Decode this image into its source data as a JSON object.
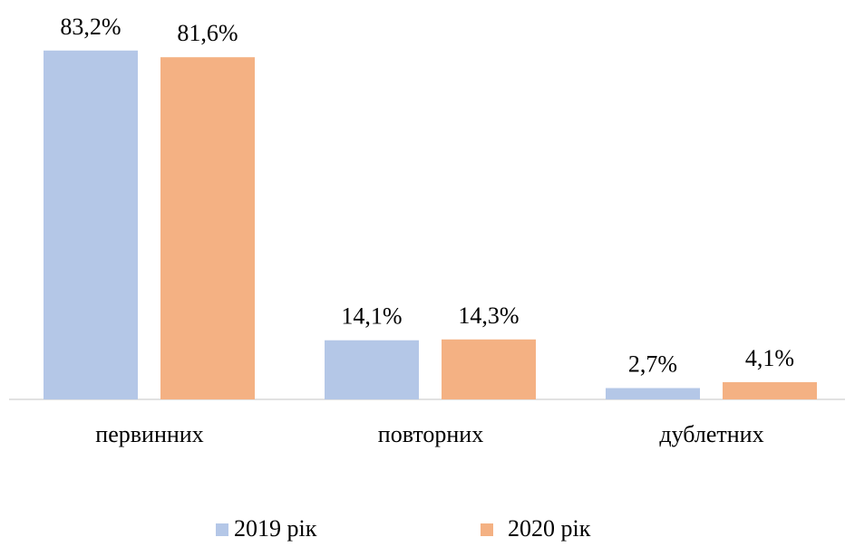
{
  "chart_data": {
    "type": "bar",
    "categories": [
      "первинних",
      "повторних",
      "дублетних"
    ],
    "series": [
      {
        "name": "2019 рік",
        "color": "#b4c7e7",
        "values": [
          83.2,
          14.1,
          2.7
        ],
        "value_labels": [
          "83,2%",
          "14,1%",
          "2,7%"
        ]
      },
      {
        "name": "2020 рік",
        "color": "#f4b183",
        "values": [
          81.6,
          14.3,
          4.1
        ],
        "value_labels": [
          "81,6%",
          "14,3%",
          "4,1%"
        ]
      }
    ]
  }
}
